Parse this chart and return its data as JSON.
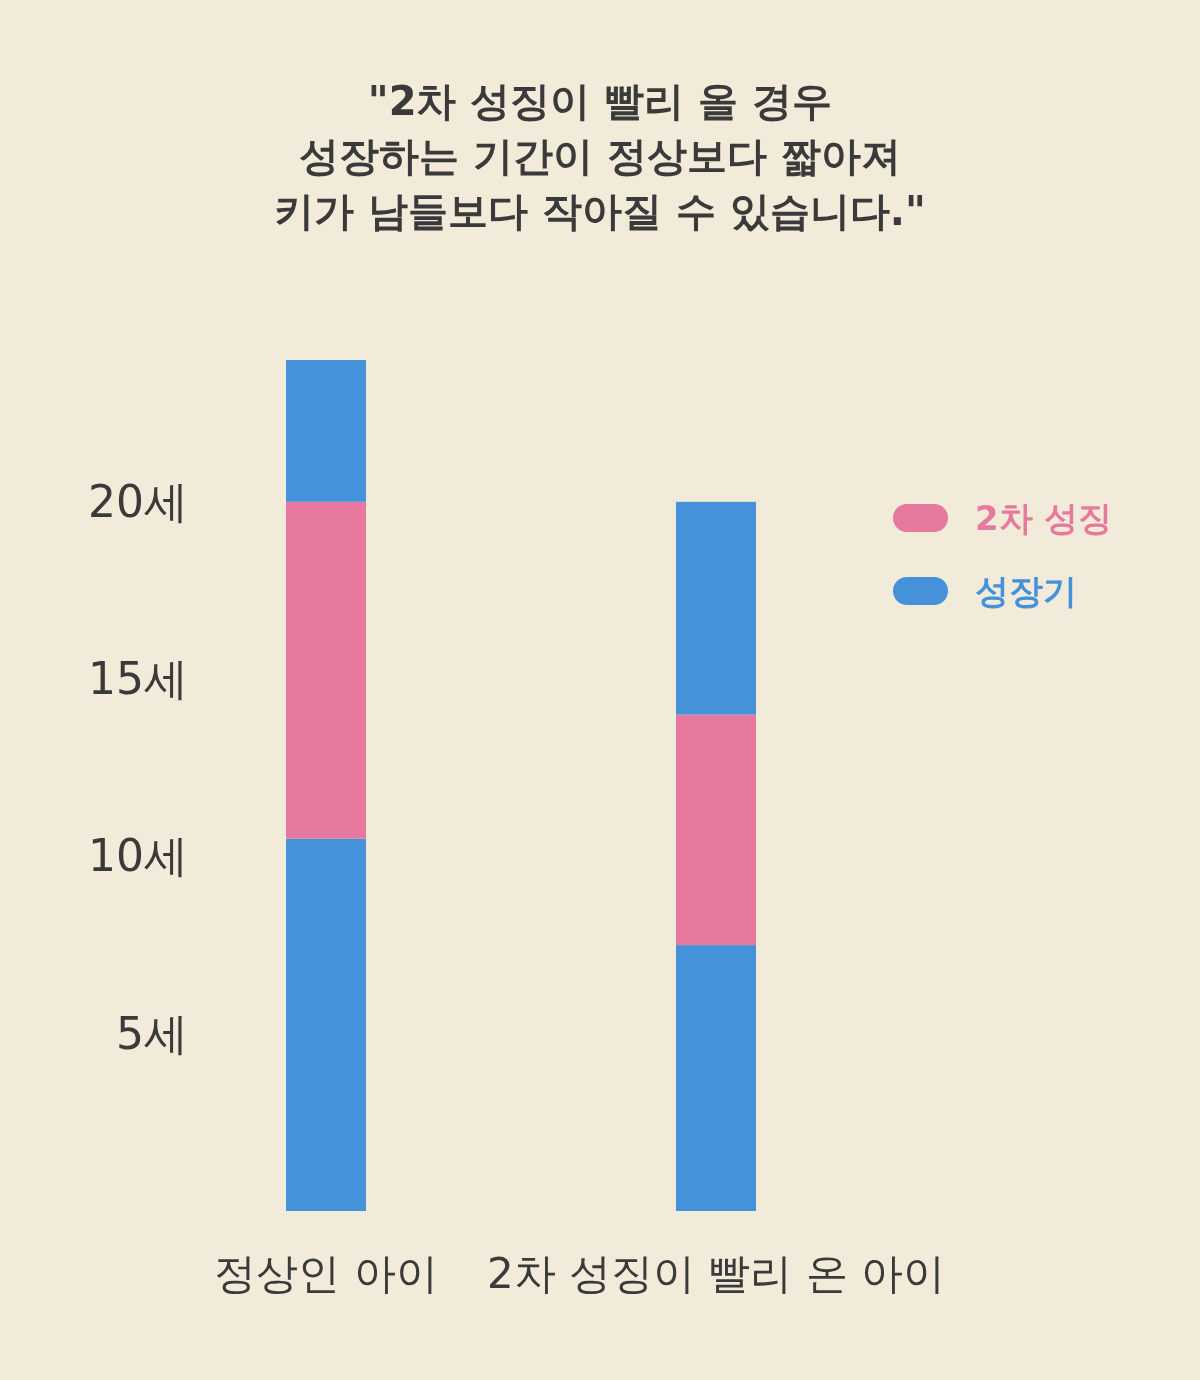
{
  "chart_data": {
    "type": "bar",
    "title": "\"2차 성징이 빨리 올 경우\n성장하는 기간이 정상보다 짧아져\n키가 남들보다 작아질 수 있습니다.\"",
    "categories": [
      "정상인 아이",
      "2차 성징이 빨리 온 아이"
    ],
    "stacked": true,
    "series": [
      {
        "name": "성장기",
        "color": "#4592db",
        "values": [
          10.5,
          7.5
        ]
      },
      {
        "name": "2차 성징",
        "color": "#e8799e",
        "values": [
          9.5,
          6.5
        ]
      },
      {
        "color": "#4592db",
        "values": [
          4,
          6
        ]
      }
    ],
    "ylim": [
      0,
      24
    ],
    "yticks": [
      {
        "value": 5,
        "label": "5세"
      },
      {
        "value": 10,
        "label": "10세"
      },
      {
        "value": 15,
        "label": "15세"
      },
      {
        "value": 20,
        "label": "20세"
      }
    ],
    "legend": "top right"
  }
}
